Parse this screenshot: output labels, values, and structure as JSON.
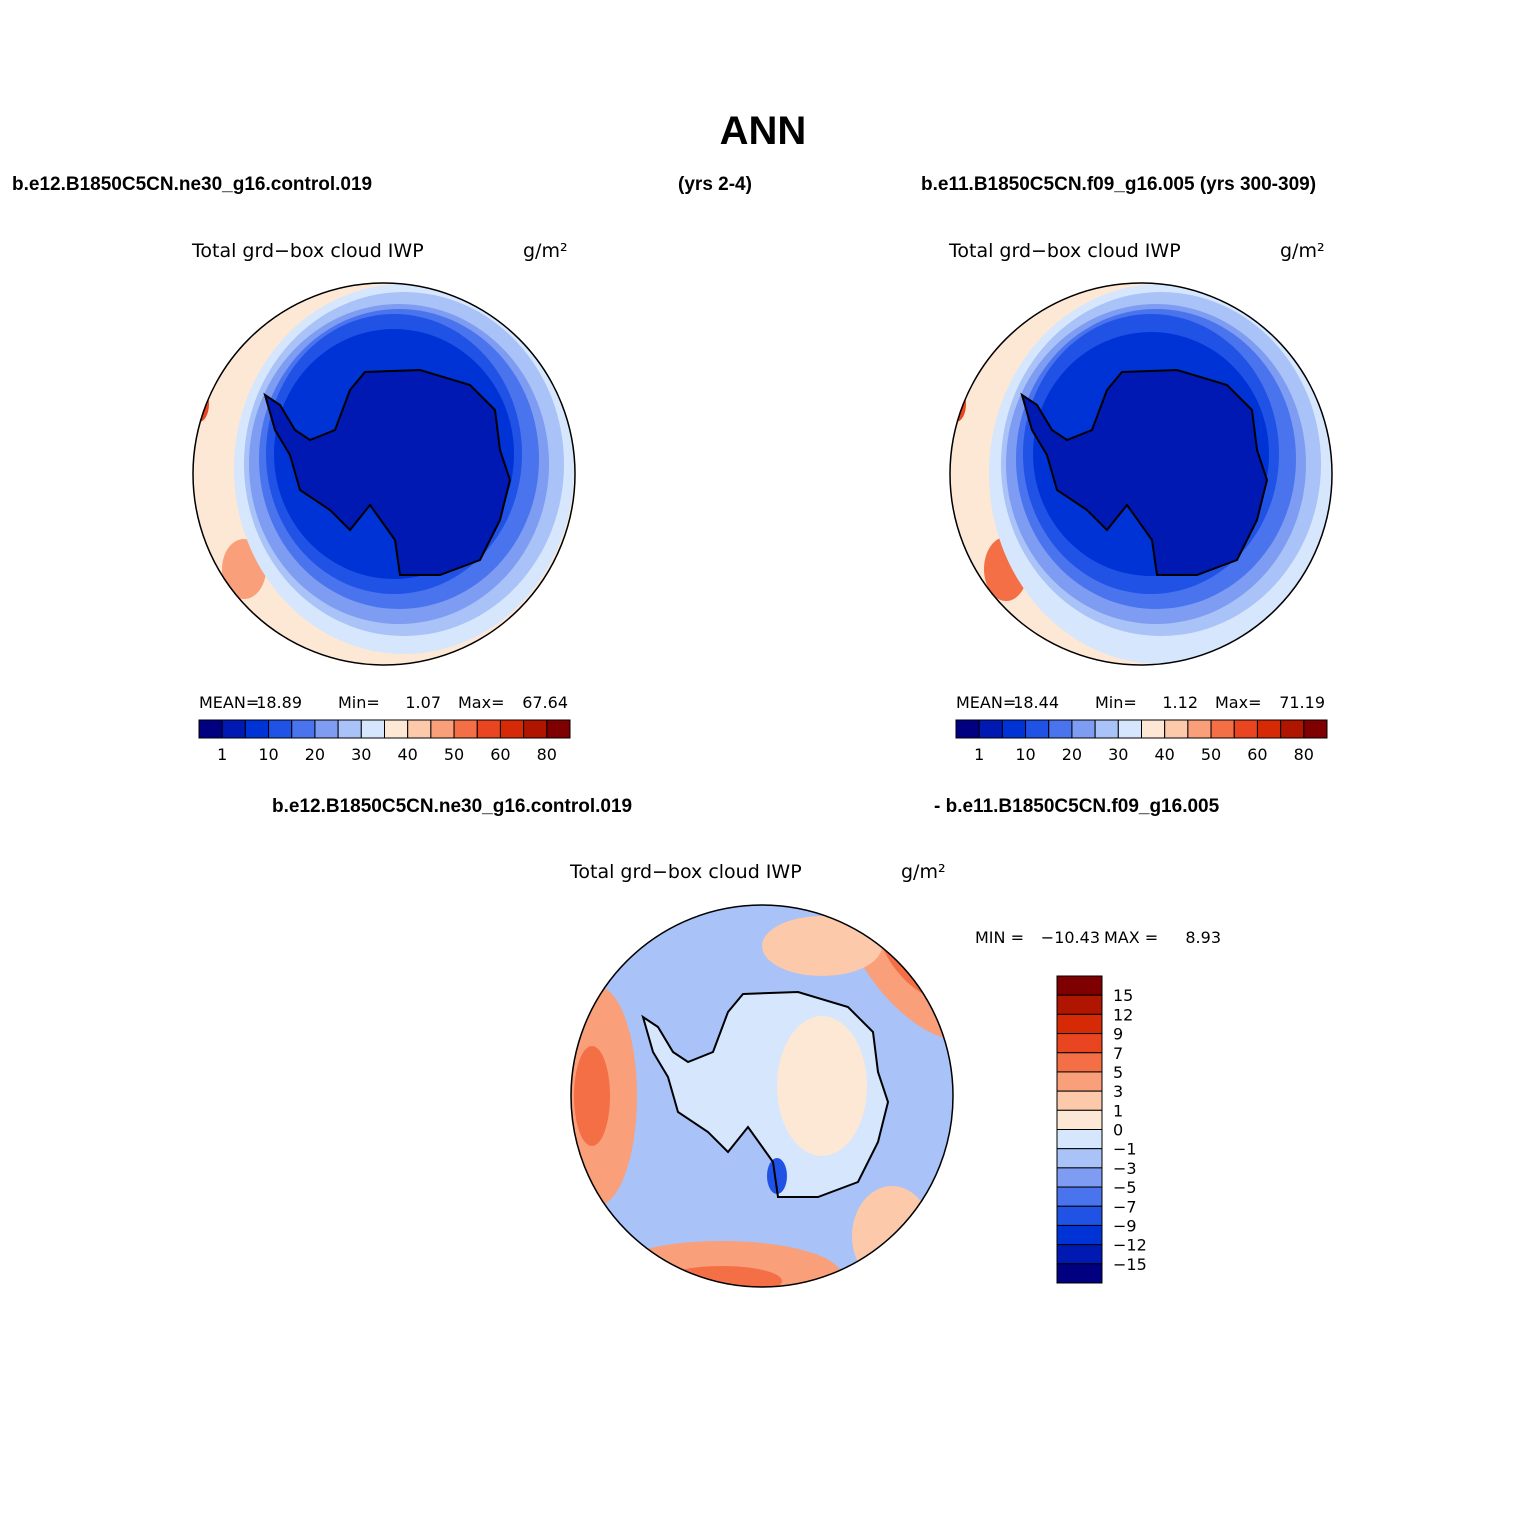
{
  "title": "ANN",
  "header": {
    "left": "b.e12.B1850C5CN.ne30_g16.control.019",
    "center": "(yrs 2-4)",
    "right": "b.e11.B1850C5CN.f09_g16.005 (yrs 300-309)"
  },
  "panels": [
    {
      "title": "Total grd−box cloud IWP",
      "units": "g/m²",
      "stats": {
        "mean_label": "MEAN=",
        "mean": "18.89",
        "min_label": "Min=",
        "min": "1.07",
        "max_label": "Max=",
        "max": "67.64"
      },
      "colorbar_labels": [
        "1",
        "10",
        "20",
        "30",
        "40",
        "50",
        "60",
        "80"
      ]
    },
    {
      "title": "Total grd−box cloud IWP",
      "units": "g/m²",
      "stats": {
        "mean_label": "MEAN=",
        "mean": "18.44",
        "min_label": "Min=",
        "min": "1.12",
        "max_label": "Max=",
        "max": "71.19"
      },
      "colorbar_labels": [
        "1",
        "10",
        "20",
        "30",
        "40",
        "50",
        "60",
        "80"
      ]
    }
  ],
  "difference": {
    "left": "b.e12.B1850C5CN.ne30_g16.control.019",
    "right": "- b.e11.B1850C5CN.f09_g16.005",
    "title": "Total grd−box cloud IWP",
    "units": "g/m²",
    "stats": {
      "min_label": "MIN =",
      "min": "−10.43",
      "max_label": "MAX =",
      "max": "8.93"
    },
    "colorbar_labels": [
      "15",
      "12",
      "9",
      "7",
      "5",
      "3",
      "1",
      "0",
      "−1",
      "−3",
      "−5",
      "−7",
      "−9",
      "−12",
      "−15"
    ]
  },
  "colors": [
    "#000080",
    "#0019b3",
    "#0033d6",
    "#2152e6",
    "#4a73ee",
    "#7d9cf2",
    "#a9c2f7",
    "#d6e6fc",
    "#fde8d6",
    "#fcc9ab",
    "#f9a07a",
    "#f46f45",
    "#e94520",
    "#d62a06",
    "#b01500",
    "#7f0000"
  ]
}
